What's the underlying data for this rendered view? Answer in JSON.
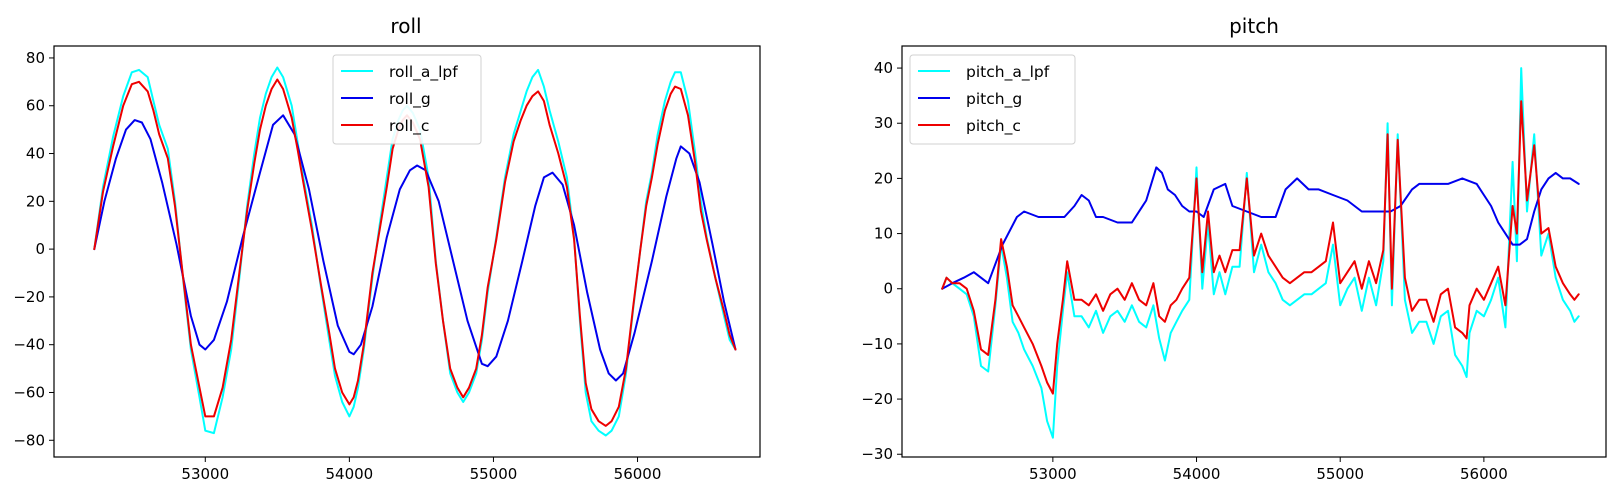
{
  "chart_data": [
    {
      "type": "line",
      "title": "roll",
      "xlim": [
        51950,
        56850
      ],
      "ylim": [
        -87,
        85
      ],
      "xticks": [
        53000,
        54000,
        55000,
        56000
      ],
      "yticks": [
        -80,
        -60,
        -40,
        -20,
        0,
        20,
        40,
        60,
        80
      ],
      "legend": "top-center",
      "series": [
        {
          "name": "roll_a_lpf",
          "color": "#00ffff",
          "x": [
            52230,
            52290,
            52360,
            52430,
            52490,
            52540,
            52600,
            52640,
            52680,
            52740,
            52790,
            52850,
            52900,
            52960,
            53000,
            53060,
            53120,
            53180,
            53240,
            53290,
            53340,
            53380,
            53420,
            53460,
            53500,
            53540,
            53600,
            53640,
            53680,
            53740,
            53800,
            53860,
            53900,
            53950,
            54000,
            54030,
            54060,
            54100,
            54160,
            54210,
            54260,
            54300,
            54340,
            54370,
            54400,
            54440,
            54490,
            54550,
            54600,
            54650,
            54700,
            54750,
            54790,
            54830,
            54880,
            54920,
            54960,
            55020,
            55080,
            55140,
            55190,
            55230,
            55270,
            55310,
            55350,
            55390,
            55450,
            55510,
            55560,
            55600,
            55640,
            55680,
            55730,
            55780,
            55820,
            55870,
            55920,
            55970,
            56020,
            56060,
            56100,
            56140,
            56190,
            56230,
            56260,
            56300,
            56350,
            56400,
            56440,
            56480,
            56540,
            56600,
            56640,
            56680
          ],
          "y": [
            0,
            26,
            47,
            64,
            74,
            75,
            72,
            62,
            52,
            42,
            20,
            -15,
            -42,
            -62,
            -76,
            -77,
            -62,
            -42,
            -10,
            18,
            40,
            55,
            65,
            72,
            76,
            72,
            60,
            45,
            30,
            10,
            -15,
            -38,
            -53,
            -64,
            -70,
            -66,
            -58,
            -42,
            -12,
            10,
            30,
            46,
            54,
            58,
            60,
            57,
            50,
            30,
            -5,
            -30,
            -52,
            -60,
            -64,
            -60,
            -52,
            -38,
            -18,
            5,
            30,
            48,
            58,
            66,
            72,
            75,
            68,
            58,
            45,
            30,
            5,
            -30,
            -60,
            -72,
            -76,
            -78,
            -76,
            -70,
            -52,
            -25,
            0,
            20,
            32,
            48,
            62,
            70,
            74,
            74,
            62,
            40,
            20,
            5,
            -12,
            -28,
            -38,
            -42
          ]
        },
        {
          "name": "roll_g",
          "color": "#0000ee",
          "x": [
            52230,
            52300,
            52380,
            52450,
            52510,
            52560,
            52620,
            52700,
            52800,
            52900,
            52960,
            53000,
            53060,
            53150,
            53260,
            53380,
            53470,
            53540,
            53620,
            53720,
            53820,
            53920,
            54000,
            54030,
            54080,
            54160,
            54260,
            54350,
            54420,
            54470,
            54530,
            54620,
            54720,
            54820,
            54920,
            54960,
            55020,
            55100,
            55200,
            55290,
            55350,
            55410,
            55480,
            55560,
            55650,
            55740,
            55800,
            55850,
            55900,
            55980,
            56100,
            56200,
            56270,
            56300,
            56360,
            56430,
            56520,
            56600,
            56680
          ],
          "y": [
            0,
            20,
            38,
            50,
            54,
            53,
            46,
            28,
            2,
            -28,
            -40,
            -42,
            -38,
            -22,
            5,
            32,
            52,
            56,
            48,
            25,
            -5,
            -32,
            -43,
            -44,
            -40,
            -24,
            5,
            25,
            33,
            35,
            33,
            20,
            -5,
            -30,
            -48,
            -49,
            -45,
            -30,
            -5,
            18,
            30,
            32,
            27,
            10,
            -18,
            -42,
            -52,
            -55,
            -52,
            -35,
            -5,
            22,
            38,
            43,
            40,
            28,
            2,
            -22,
            -42
          ]
        },
        {
          "name": "roll_c",
          "color": "#ee0000",
          "x": [
            52230,
            52290,
            52360,
            52430,
            52490,
            52540,
            52600,
            52640,
            52680,
            52740,
            52790,
            52850,
            52900,
            52960,
            53000,
            53060,
            53120,
            53180,
            53240,
            53290,
            53340,
            53380,
            53420,
            53460,
            53500,
            53540,
            53600,
            53640,
            53680,
            53740,
            53800,
            53860,
            53900,
            53950,
            54000,
            54030,
            54060,
            54100,
            54160,
            54210,
            54260,
            54300,
            54340,
            54370,
            54400,
            54440,
            54490,
            54550,
            54600,
            54650,
            54700,
            54750,
            54790,
            54830,
            54880,
            54920,
            54960,
            55020,
            55080,
            55140,
            55190,
            55230,
            55270,
            55310,
            55350,
            55390,
            55450,
            55510,
            55560,
            55600,
            55640,
            55680,
            55730,
            55780,
            55820,
            55870,
            55920,
            55970,
            56020,
            56060,
            56100,
            56140,
            56190,
            56230,
            56260,
            56300,
            56350,
            56400,
            56440,
            56480,
            56540,
            56600,
            56640,
            56680
          ],
          "y": [
            0,
            24,
            43,
            60,
            69,
            70,
            66,
            58,
            48,
            38,
            18,
            -14,
            -40,
            -58,
            -70,
            -70,
            -58,
            -38,
            -8,
            16,
            36,
            50,
            60,
            67,
            71,
            67,
            55,
            42,
            28,
            8,
            -14,
            -35,
            -50,
            -60,
            -65,
            -62,
            -55,
            -40,
            -10,
            8,
            26,
            42,
            50,
            54,
            56,
            53,
            46,
            26,
            -6,
            -30,
            -50,
            -58,
            -62,
            -58,
            -50,
            -36,
            -16,
            4,
            28,
            45,
            54,
            60,
            64,
            66,
            62,
            52,
            40,
            26,
            4,
            -28,
            -56,
            -67,
            -72,
            -74,
            -72,
            -66,
            -50,
            -24,
            0,
            18,
            30,
            44,
            58,
            65,
            68,
            67,
            56,
            36,
            16,
            4,
            -12,
            -26,
            -36,
            -42
          ]
        }
      ]
    },
    {
      "type": "line",
      "title": "pitch",
      "xlim": [
        51950,
        56850
      ],
      "ylim": [
        -30.5,
        44
      ],
      "xticks": [
        53000,
        54000,
        55000,
        56000
      ],
      "yticks": [
        -30,
        -20,
        -10,
        0,
        10,
        20,
        30,
        40
      ],
      "legend": "top-left",
      "series": [
        {
          "name": "pitch_a_lpf",
          "color": "#00ffff",
          "x": [
            52230,
            52260,
            52300,
            52350,
            52400,
            52450,
            52500,
            52550,
            52600,
            52640,
            52680,
            52720,
            52760,
            52800,
            52860,
            52920,
            52960,
            53000,
            53030,
            53070,
            53100,
            53150,
            53200,
            53250,
            53300,
            53350,
            53400,
            53450,
            53500,
            53550,
            53600,
            53650,
            53700,
            53740,
            53780,
            53820,
            53860,
            53900,
            53950,
            54000,
            54040,
            54080,
            54120,
            54160,
            54200,
            54250,
            54300,
            54350,
            54400,
            54450,
            54500,
            54550,
            54600,
            54650,
            54700,
            54750,
            54800,
            54850,
            54900,
            54950,
            55000,
            55050,
            55100,
            55150,
            55200,
            55250,
            55300,
            55330,
            55360,
            55400,
            55450,
            55500,
            55550,
            55600,
            55650,
            55700,
            55750,
            55800,
            55850,
            55880,
            55900,
            55950,
            56000,
            56050,
            56100,
            56150,
            56200,
            56230,
            56260,
            56300,
            56350,
            56400,
            56450,
            56500,
            56550,
            56600,
            56630,
            56660
          ],
          "y": [
            0,
            2,
            1,
            0,
            -1,
            -5,
            -14,
            -15,
            -3,
            8,
            2,
            -6,
            -8,
            -11,
            -14,
            -18,
            -24,
            -27,
            -14,
            -4,
            3,
            -5,
            -5,
            -7,
            -4,
            -8,
            -5,
            -4,
            -6,
            -3,
            -6,
            -7,
            -3,
            -9,
            -13,
            -8,
            -6,
            -4,
            -2,
            22,
            0,
            12,
            -1,
            3,
            -1,
            4,
            4,
            21,
            3,
            8,
            3,
            1,
            -2,
            -3,
            -2,
            -1,
            -1,
            0,
            1,
            8,
            -3,
            0,
            2,
            -4,
            2,
            -3,
            5,
            30,
            -3,
            28,
            -2,
            -8,
            -6,
            -6,
            -10,
            -5,
            -4,
            -12,
            -14,
            -16,
            -8,
            -4,
            -5,
            -2,
            2,
            -7,
            23,
            5,
            40,
            14,
            28,
            6,
            10,
            2,
            -2,
            -4,
            -6,
            -5
          ]
        },
        {
          "name": "pitch_g",
          "color": "#0000ee",
          "x": [
            52230,
            52300,
            52380,
            52450,
            52550,
            52650,
            52750,
            52800,
            52900,
            52960,
            53000,
            53080,
            53150,
            53200,
            53250,
            53300,
            53350,
            53450,
            53550,
            53650,
            53720,
            53760,
            53800,
            53850,
            53900,
            53950,
            54000,
            54050,
            54120,
            54200,
            54250,
            54350,
            54450,
            54500,
            54550,
            54620,
            54700,
            54780,
            54850,
            54950,
            55050,
            55150,
            55250,
            55350,
            55420,
            55500,
            55550,
            55650,
            55750,
            55850,
            55950,
            56000,
            56050,
            56100,
            56150,
            56200,
            56250,
            56300,
            56350,
            56400,
            56450,
            56500,
            56550,
            56600,
            56660
          ],
          "y": [
            0,
            1,
            2,
            3,
            1,
            8,
            13,
            14,
            13,
            13,
            13,
            13,
            15,
            17,
            16,
            13,
            13,
            12,
            12,
            16,
            22,
            21,
            18,
            17,
            15,
            14,
            14,
            13,
            18,
            19,
            15,
            14,
            13,
            13,
            13,
            18,
            20,
            18,
            18,
            17,
            16,
            14,
            14,
            14,
            15,
            18,
            19,
            19,
            19,
            20,
            19,
            17,
            15,
            12,
            10,
            8,
            8,
            9,
            14,
            18,
            20,
            21,
            20,
            20,
            19
          ]
        },
        {
          "name": "pitch_c",
          "color": "#ee0000",
          "x": [
            52230,
            52260,
            52300,
            52350,
            52400,
            52450,
            52500,
            52550,
            52600,
            52640,
            52680,
            52720,
            52760,
            52800,
            52860,
            52920,
            52960,
            53000,
            53030,
            53070,
            53100,
            53150,
            53200,
            53250,
            53300,
            53350,
            53400,
            53450,
            53500,
            53550,
            53600,
            53650,
            53700,
            53740,
            53780,
            53820,
            53860,
            53900,
            53950,
            54000,
            54040,
            54080,
            54120,
            54160,
            54200,
            54250,
            54300,
            54350,
            54400,
            54450,
            54500,
            54550,
            54600,
            54650,
            54700,
            54750,
            54800,
            54850,
            54900,
            54950,
            55000,
            55050,
            55100,
            55150,
            55200,
            55250,
            55300,
            55330,
            55360,
            55400,
            55450,
            55500,
            55550,
            55600,
            55650,
            55700,
            55750,
            55800,
            55850,
            55880,
            55900,
            55950,
            56000,
            56050,
            56100,
            56150,
            56200,
            56230,
            56260,
            56300,
            56350,
            56400,
            56450,
            56500,
            56550,
            56600,
            56630,
            56660
          ],
          "y": [
            0,
            2,
            1,
            1,
            0,
            -4,
            -11,
            -12,
            -2,
            9,
            4,
            -3,
            -5,
            -7,
            -10,
            -14,
            -17,
            -19,
            -10,
            -2,
            5,
            -2,
            -2,
            -3,
            -1,
            -4,
            -1,
            0,
            -2,
            1,
            -2,
            -3,
            1,
            -5,
            -6,
            -3,
            -2,
            0,
            2,
            20,
            3,
            14,
            3,
            6,
            3,
            7,
            7,
            20,
            6,
            10,
            6,
            4,
            2,
            1,
            2,
            3,
            3,
            4,
            5,
            12,
            1,
            3,
            5,
            0,
            5,
            1,
            7,
            28,
            0,
            27,
            2,
            -4,
            -2,
            -2,
            -6,
            -1,
            0,
            -7,
            -8,
            -9,
            -3,
            0,
            -2,
            1,
            4,
            -3,
            15,
            10,
            34,
            16,
            26,
            10,
            11,
            4,
            1,
            -1,
            -2,
            -1
          ]
        }
      ]
    }
  ]
}
